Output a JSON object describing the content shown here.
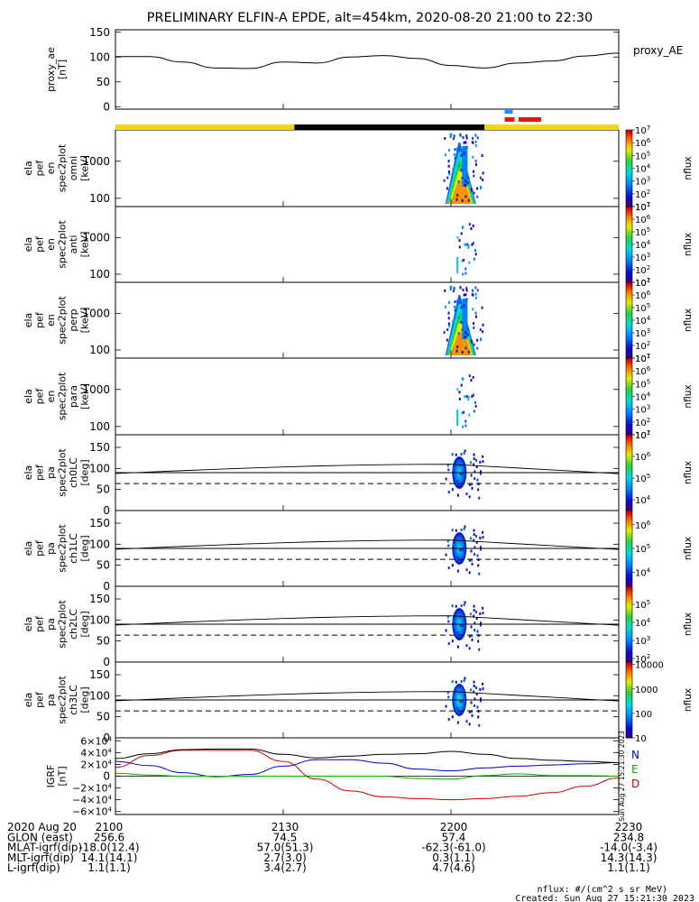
{
  "title": "PRELIMINARY ELFIN-A EPDE, alt=454km, 2020-08-20 21:00 to 22:30",
  "chart_data": [
    {
      "id": "ae",
      "type": "line",
      "ylabel": [
        "proxy_ae",
        "[nT]"
      ],
      "legend": "proxy_AE",
      "ylim": [
        -5,
        155
      ],
      "yticks": [
        0,
        50,
        100,
        150
      ],
      "x_minutes": [
        0,
        6,
        12,
        18,
        24,
        30,
        36,
        42,
        48,
        54,
        60,
        66,
        72,
        78,
        84,
        90
      ],
      "values": [
        101,
        101,
        90,
        78,
        77,
        90,
        88,
        100,
        103,
        97,
        83,
        78,
        88,
        92,
        102,
        108
      ],
      "color": "#000000"
    },
    {
      "id": "spec_omni",
      "type": "heatmap",
      "ylabel": [
        "ela",
        "pef",
        "en",
        "spec2plot",
        "omni",
        "[keV]"
      ],
      "yscale": "log",
      "ylim": [
        60,
        7000
      ],
      "yticks": [
        100,
        1000
      ],
      "ytick_labels": [
        "100",
        "1000"
      ],
      "zlabel": "nflux",
      "zlim_exp": [
        1,
        7
      ],
      "colorbar_ticks": [
        "101",
        "102",
        "103",
        "104",
        "105",
        "106",
        "107"
      ]
    },
    {
      "id": "spec_anti",
      "type": "heatmap",
      "ylabel": [
        "ela",
        "pef",
        "en",
        "spec2plot",
        "anti",
        "[keV]"
      ],
      "yscale": "log",
      "ylim": [
        60,
        7000
      ],
      "yticks": [
        100,
        1000
      ],
      "ytick_labels": [
        "100",
        "1000"
      ],
      "zlabel": "nflux",
      "zlim_exp": [
        1,
        7
      ],
      "colorbar_ticks": [
        "101",
        "102",
        "103",
        "104",
        "105",
        "106",
        "107"
      ]
    },
    {
      "id": "spec_perp",
      "type": "heatmap",
      "ylabel": [
        "ela",
        "pef",
        "en",
        "spec2plot",
        "perp",
        "[keV]"
      ],
      "yscale": "log",
      "ylim": [
        60,
        7000
      ],
      "yticks": [
        100,
        1000
      ],
      "ytick_labels": [
        "100",
        "1000"
      ],
      "zlabel": "nflux",
      "zlim_exp": [
        1,
        7
      ],
      "colorbar_ticks": [
        "101",
        "102",
        "103",
        "104",
        "105",
        "106",
        "107"
      ]
    },
    {
      "id": "spec_para",
      "type": "heatmap",
      "ylabel": [
        "ela",
        "pef",
        "en",
        "spec2plot",
        "para",
        "[keV]"
      ],
      "yscale": "log",
      "ylim": [
        60,
        7000
      ],
      "yticks": [
        100,
        1000
      ],
      "ytick_labels": [
        "100",
        "1000"
      ],
      "zlabel": "nflux",
      "zlim_exp": [
        1,
        7
      ],
      "colorbar_ticks": [
        "101",
        "102",
        "103",
        "104",
        "105",
        "106",
        "107"
      ]
    },
    {
      "id": "pa_ch0",
      "type": "heatmap",
      "ylabel": [
        "ela",
        "pef",
        "pa",
        "spec2plot",
        "ch0LC",
        "[deg]"
      ],
      "ylim": [
        0,
        180
      ],
      "yticks": [
        0,
        50,
        100,
        150
      ],
      "zlabel": "nflux",
      "zlim_exp": [
        3.5,
        7
      ],
      "colorbar_ticks": [
        "104",
        "105",
        "106",
        "107"
      ]
    },
    {
      "id": "pa_ch1",
      "type": "heatmap",
      "ylabel": [
        "ela",
        "pef",
        "pa",
        "spec2plot",
        "ch1LC",
        "[deg]"
      ],
      "ylim": [
        0,
        180
      ],
      "yticks": [
        0,
        50,
        100,
        150
      ],
      "zlabel": "nflux",
      "zlim_exp": [
        3.4,
        6.6
      ],
      "colorbar_ticks": [
        "104",
        "105",
        "106"
      ]
    },
    {
      "id": "pa_ch2",
      "type": "heatmap",
      "ylabel": [
        "ela",
        "pef",
        "pa",
        "spec2plot",
        "ch2LC",
        "[deg]"
      ],
      "ylim": [
        0,
        180
      ],
      "yticks": [
        0,
        50,
        100,
        150
      ],
      "zlabel": "nflux",
      "zlim_exp": [
        1.8,
        6
      ],
      "colorbar_ticks": [
        "102",
        "103",
        "104",
        "105"
      ]
    },
    {
      "id": "pa_ch3",
      "type": "heatmap",
      "ylabel": [
        "ela",
        "pef",
        "pa",
        "spec2plot",
        "ch3LC",
        "[deg]"
      ],
      "ylim": [
        0,
        180
      ],
      "yticks": [
        0,
        50,
        100,
        150
      ],
      "zlabel": "nflux",
      "zlim_exp": [
        1,
        4.1
      ],
      "colorbar_ticks": [
        "10",
        "100",
        "1000",
        "10000"
      ]
    },
    {
      "id": "igrf",
      "type": "line",
      "ylabel": [
        "IGRF",
        "[nT]"
      ],
      "ylim": [
        -65000,
        65000
      ],
      "yticks": [
        -60000,
        -40000,
        -20000,
        0,
        20000,
        40000,
        60000
      ],
      "x_minutes": [
        0,
        6,
        12,
        18,
        24,
        30,
        36,
        42,
        48,
        54,
        60,
        66,
        72,
        78,
        84,
        90
      ],
      "series": [
        {
          "name": "N",
          "color": "#0000cc",
          "values": [
            25000,
            18000,
            6000,
            -1000,
            3000,
            17000,
            28000,
            28000,
            22000,
            12000,
            9000,
            14000,
            17000,
            19000,
            21000,
            23000
          ]
        },
        {
          "name": "E",
          "color": "#00aa00",
          "values": [
            5000,
            2000,
            0,
            0,
            0,
            0,
            0,
            0,
            0,
            -4000,
            -5000,
            1000,
            4000,
            1000,
            1000,
            0
          ]
        },
        {
          "name": "D",
          "color": "#cc0000",
          "values": [
            15000,
            35000,
            44000,
            44000,
            44000,
            25000,
            -5000,
            -25000,
            -35000,
            -38000,
            -40000,
            -38000,
            -34000,
            -28000,
            -17000,
            -3000
          ]
        },
        {
          "name": "",
          "color": "#000000",
          "values": [
            30000,
            38000,
            45000,
            46000,
            46000,
            37000,
            31000,
            34000,
            37000,
            38000,
            42000,
            37000,
            30000,
            27000,
            25000,
            23000
          ]
        }
      ]
    }
  ],
  "axis": {
    "x_labels": [
      "2100",
      "2130",
      "2200",
      "2230"
    ],
    "rows": [
      {
        "label": "2020 Aug 20",
        "values": [
          "2100",
          "2130",
          "2200",
          "2230"
        ]
      },
      {
        "label": "GLON (east)",
        "values": [
          "256.6",
          "74.5",
          "57.4",
          "234.8"
        ]
      },
      {
        "label": "MLAT-igrf(dip)",
        "values": [
          "-18.0(12.4)",
          "57.0(51.3)",
          "-62.3(-61.0)",
          "-14.0(-3.4)"
        ]
      },
      {
        "label": "MLT-igrf(dip)",
        "values": [
          "14.1(14.1)",
          "2.7(3.0)",
          "0.3(1.1)",
          "14.3(14.3)"
        ]
      },
      {
        "label": "L-igrf(dip)",
        "values": [
          "1.1(1.1)",
          "3.4(2.7)",
          "4.7(4.6)",
          "1.1(1.1)"
        ]
      }
    ]
  },
  "footer": {
    "units": "nflux: #/(cm^2 s sr MeV)",
    "created": "Created: Sun Aug 27 15:21:30 2023",
    "vertical_stamp": "Sun Aug 27 15:21:30 2023"
  },
  "colors": {
    "sunlight": "#f2d600",
    "eclipse": "#000000",
    "science_blue": "#2090ff",
    "science_red": "#ee1111"
  }
}
